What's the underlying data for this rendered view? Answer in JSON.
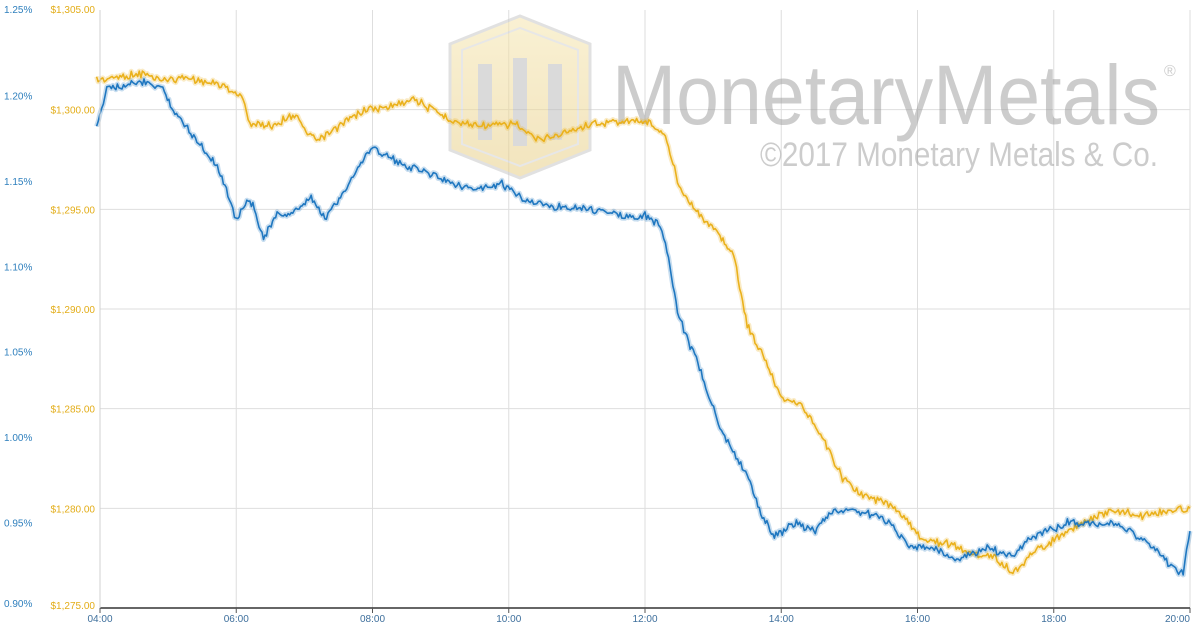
{
  "chart_data": {
    "type": "line",
    "x_ticks": [
      "04:00",
      "06:00",
      "08:00",
      "10:00",
      "12:00",
      "14:00",
      "16:00",
      "18:00",
      "20:00"
    ],
    "left_axis": {
      "ticks": [
        "1.25%",
        "1.20%",
        "1.15%",
        "1.10%",
        "1.05%",
        "1.00%",
        "0.95%",
        "0.90%"
      ],
      "ylim": [
        0.9,
        1.25
      ],
      "color": "#1f77c0"
    },
    "inner_axis": {
      "ticks": [
        "$1,305.00",
        "$1,300.00",
        "$1,295.00",
        "$1,290.00",
        "$1,285.00",
        "$1,280.00",
        "$1,275.00"
      ],
      "ylim": [
        1275,
        1305
      ],
      "color": "#eab11c"
    },
    "xlim": [
      4.0,
      20.0
    ],
    "grid": true,
    "series": [
      {
        "color": "#eab11c",
        "axis": "inner",
        "x": [
          3.95,
          4.2,
          4.6,
          4.9,
          5.3,
          5.8,
          6.1,
          6.2,
          6.5,
          6.9,
          7.0,
          7.2,
          7.6,
          7.9,
          8.2,
          8.6,
          9.0,
          9.3,
          9.7,
          10.1,
          10.4,
          10.8,
          11.2,
          11.6,
          11.9,
          12.1,
          12.3,
          12.5,
          12.8,
          13.1,
          13.3,
          13.5,
          13.8,
          14.0,
          14.3,
          14.6,
          14.9,
          15.2,
          15.6,
          15.8,
          16.1,
          16.5,
          16.8,
          17.1,
          17.4,
          17.7,
          18.1,
          18.5,
          18.9,
          19.3,
          19.7,
          20.0
        ],
        "values": [
          1301.5,
          1301.6,
          1301.8,
          1301.5,
          1301.6,
          1301.2,
          1300.6,
          1299.3,
          1299.2,
          1299.8,
          1298.9,
          1298.4,
          1299.4,
          1300.0,
          1300.1,
          1300.6,
          1299.7,
          1299.3,
          1299.2,
          1299.3,
          1298.5,
          1298.8,
          1299.3,
          1299.4,
          1299.4,
          1299.3,
          1298.6,
          1296.2,
          1294.7,
          1293.7,
          1292.7,
          1289.2,
          1287.2,
          1285.6,
          1285.2,
          1283.5,
          1281.5,
          1280.6,
          1280.2,
          1279.6,
          1278.4,
          1278.2,
          1277.7,
          1277.6,
          1276.8,
          1277.8,
          1278.6,
          1279.4,
          1279.9,
          1279.6,
          1279.9,
          1280.0
        ]
      },
      {
        "color": "#1f77c0",
        "axis": "left",
        "x": [
          3.95,
          4.1,
          4.3,
          4.6,
          4.9,
          5.1,
          5.4,
          5.7,
          5.9,
          6.0,
          6.2,
          6.4,
          6.6,
          6.9,
          7.1,
          7.3,
          7.6,
          7.9,
          8.0,
          8.4,
          8.8,
          9.1,
          9.5,
          9.9,
          10.2,
          10.6,
          11.0,
          11.4,
          11.8,
          12.0,
          12.2,
          12.3,
          12.5,
          12.8,
          13.1,
          13.5,
          13.7,
          13.9,
          14.2,
          14.5,
          14.7,
          15.0,
          15.3,
          15.6,
          15.9,
          16.2,
          16.6,
          17.0,
          17.4,
          17.6,
          17.9,
          18.2,
          18.6,
          19.0,
          19.4,
          19.7,
          19.9,
          20.0
        ],
        "values": [
          1.18,
          1.205,
          1.205,
          1.208,
          1.205,
          1.19,
          1.175,
          1.16,
          1.14,
          1.128,
          1.14,
          1.117,
          1.13,
          1.132,
          1.14,
          1.128,
          1.145,
          1.165,
          1.17,
          1.16,
          1.155,
          1.15,
          1.145,
          1.148,
          1.14,
          1.135,
          1.135,
          1.132,
          1.128,
          1.13,
          1.125,
          1.115,
          1.07,
          1.04,
          1.005,
          0.978,
          0.955,
          0.942,
          0.95,
          0.945,
          0.955,
          0.958,
          0.955,
          0.95,
          0.935,
          0.935,
          0.928,
          0.935,
          0.93,
          0.94,
          0.945,
          0.95,
          0.95,
          0.948,
          0.938,
          0.925,
          0.92,
          0.945
        ]
      }
    ]
  },
  "watermark": {
    "brand": "MonetaryMetals",
    "registered": "®",
    "copyright": "©2017 Monetary Metals & Co."
  }
}
